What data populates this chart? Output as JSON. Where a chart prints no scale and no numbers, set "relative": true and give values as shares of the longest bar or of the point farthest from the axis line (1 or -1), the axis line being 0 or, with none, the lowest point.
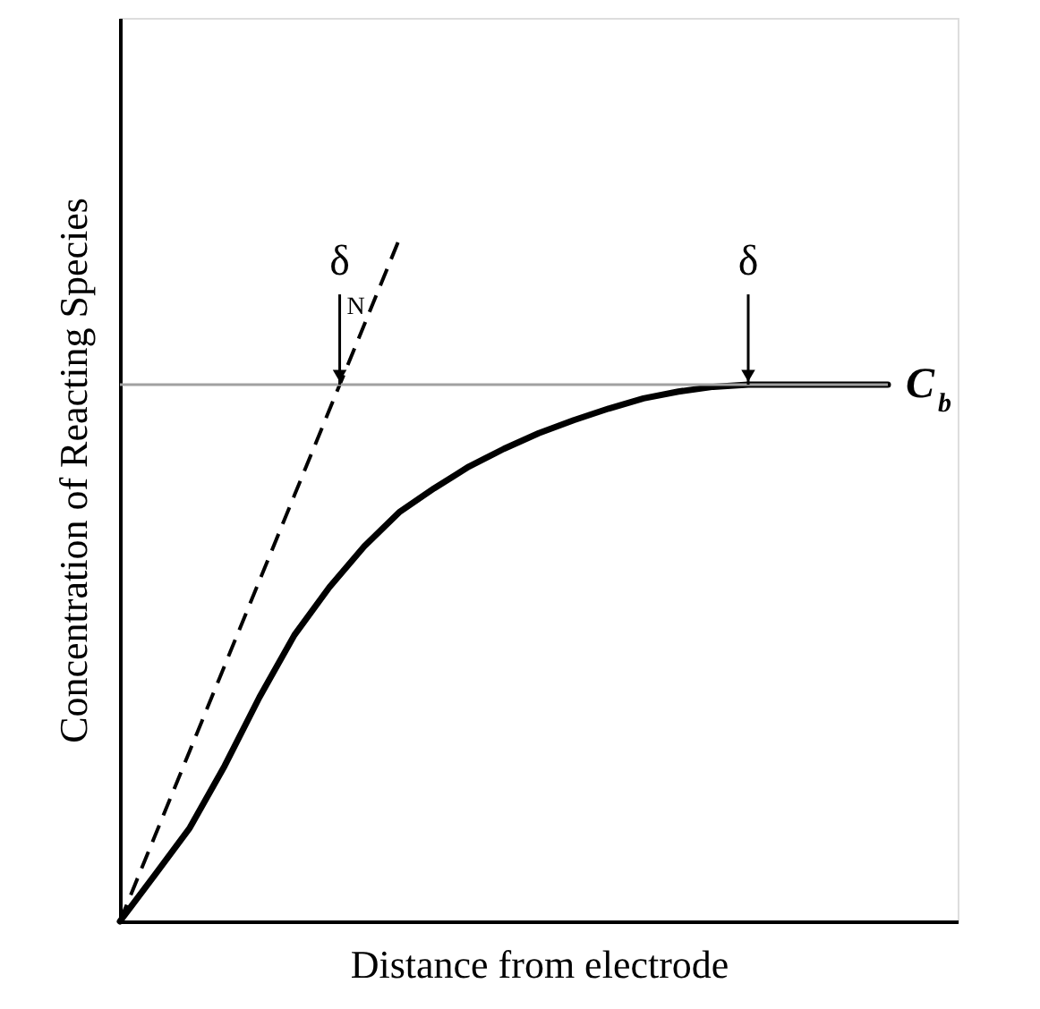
{
  "chart_data": {
    "type": "line",
    "relative": true,
    "xlabel": "Distance from electrode",
    "ylabel": "Concentration  of  Reacting  Species",
    "categories": [
      null,
      null,
      null,
      null,
      null,
      null,
      null,
      null,
      null,
      null,
      null,
      null,
      null,
      null,
      null,
      null,
      null,
      null,
      null,
      null,
      null,
      null,
      null,
      null,
      null
    ],
    "series": [
      {
        "name": "C$_{b}$",
        "color": "#000000",
        "line_style": "solid",
        "values": [
          0,
          0.068,
          0.137,
          0.228,
          0.329,
          0.42,
          0.49,
          0.55,
          0.6,
          0.635,
          0.667,
          0.693,
          0.716,
          0.735,
          0.752,
          0.767,
          0.777,
          0.784,
          0.787,
          0.787,
          0.787,
          0.787,
          0.787,
          null,
          null
        ]
      },
      {
        "color": "#000000",
        "line_style": "dashed",
        "values": [
          0,
          0.125,
          0.25,
          0.375,
          0.5,
          0.625,
          0.75,
          0.875,
          1,
          null,
          null,
          null,
          null,
          null,
          null,
          null,
          null,
          null,
          null,
          null,
          null,
          null,
          null,
          null,
          null
        ]
      },
      {
        "color": "#a0a0a0",
        "line_style": "solid",
        "values": [
          0.787,
          0.787,
          0.787,
          0.787,
          0.787,
          0.787,
          0.787,
          0.787,
          0.787,
          0.787,
          0.787,
          0.787,
          0.787,
          0.787,
          0.787,
          0.787,
          0.787,
          0.787,
          0.787,
          0.787,
          0.787,
          0.787,
          0.787,
          null,
          null
        ]
      }
    ],
    "annotations": [
      "δ$_{N}$",
      "δ"
    ]
  }
}
